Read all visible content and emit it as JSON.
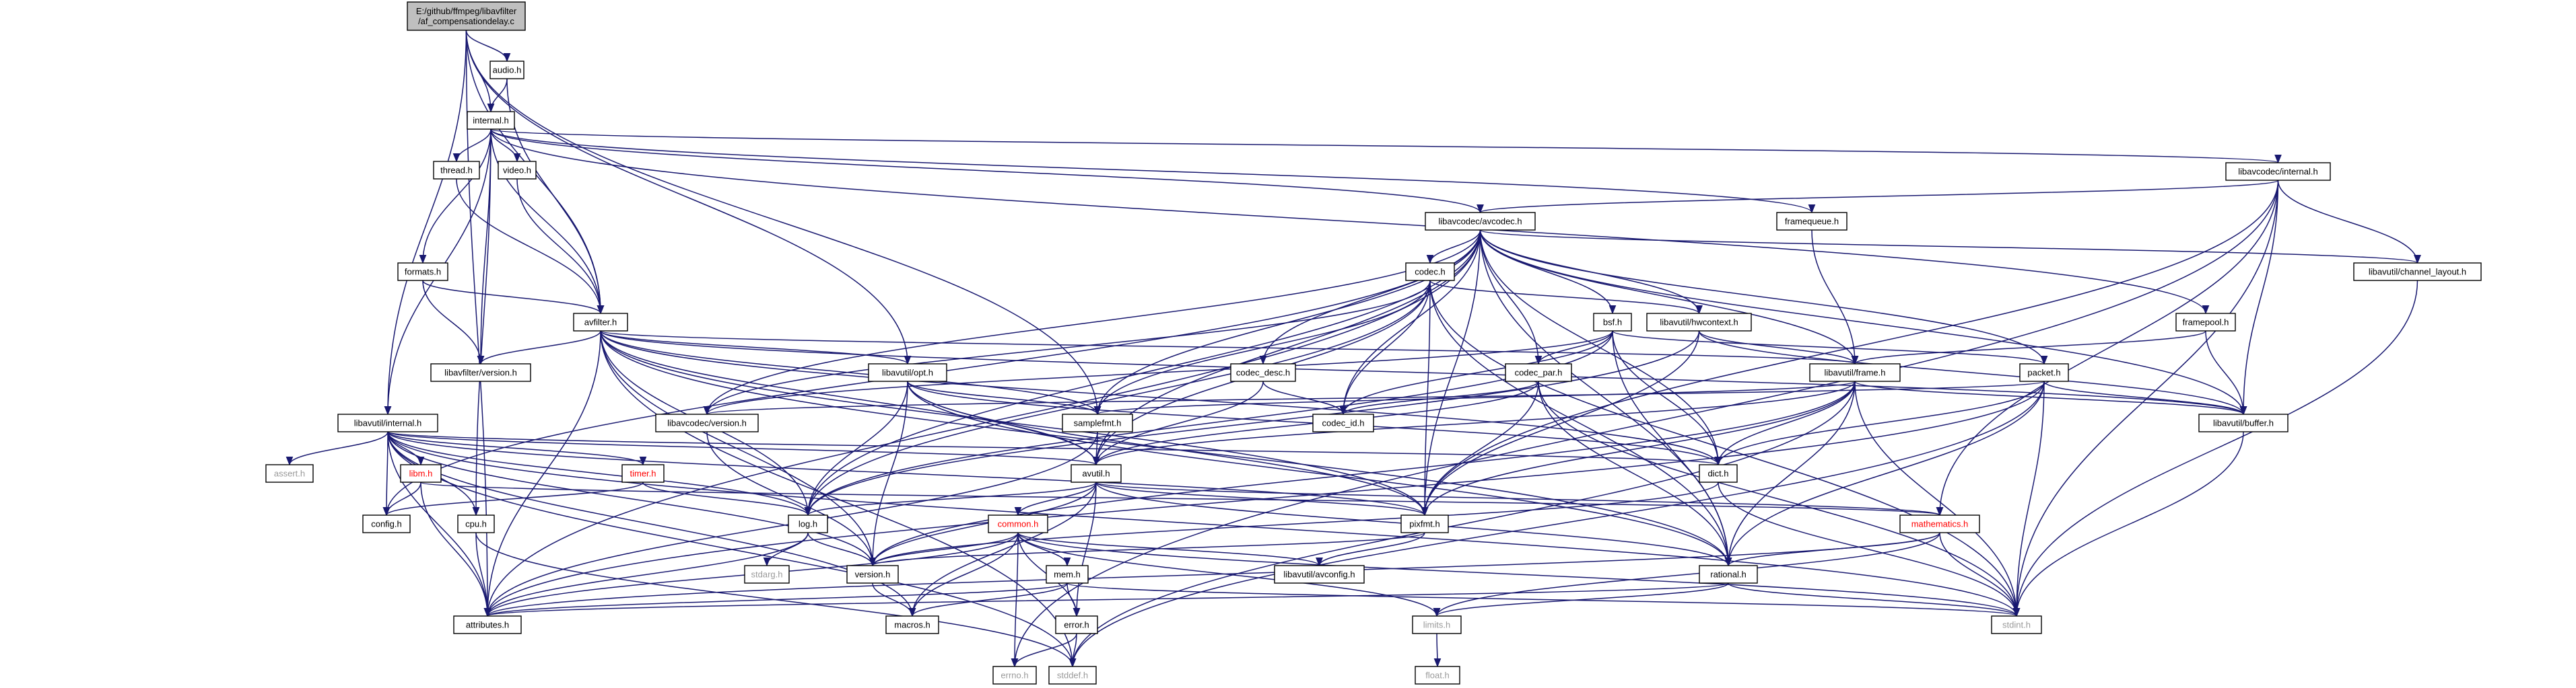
{
  "diagram": {
    "type": "include-dependency-graph",
    "colors": {
      "edge": "#191970",
      "root_fill": "#bfbfbf",
      "missing_text": "#9a9a9a",
      "undocumented_text": "#ff0000",
      "node_fill": "#ffffff"
    },
    "nodes": [
      {
        "id": "root",
        "lines": [
          "E:/github/ffmpeg/libavfilter",
          "/af_compensationdelay.c"
        ],
        "style": "root"
      },
      {
        "id": "audio_h",
        "lines": [
          "audio.h"
        ]
      },
      {
        "id": "internal_h",
        "lines": [
          "internal.h"
        ]
      },
      {
        "id": "thread_h",
        "lines": [
          "thread.h"
        ]
      },
      {
        "id": "video_h",
        "lines": [
          "video.h"
        ]
      },
      {
        "id": "formats_h",
        "lines": [
          "formats.h"
        ]
      },
      {
        "id": "avfilter_h",
        "lines": [
          "avfilter.h"
        ]
      },
      {
        "id": "avfilter_version_h",
        "lines": [
          "libavfilter/version.h"
        ]
      },
      {
        "id": "lavc_internal_h",
        "lines": [
          "libavcodec/internal.h"
        ]
      },
      {
        "id": "framequeue_h",
        "lines": [
          "framequeue.h"
        ]
      },
      {
        "id": "avcodec_h",
        "lines": [
          "libavcodec/avcodec.h"
        ]
      },
      {
        "id": "codec_h",
        "lines": [
          "codec.h"
        ]
      },
      {
        "id": "channel_layout_h",
        "lines": [
          "libavutil/channel_layout.h"
        ]
      },
      {
        "id": "bsf_h",
        "lines": [
          "bsf.h"
        ]
      },
      {
        "id": "hwcontext_h",
        "lines": [
          "libavutil/hwcontext.h"
        ]
      },
      {
        "id": "framepool_h",
        "lines": [
          "framepool.h"
        ]
      },
      {
        "id": "codec_desc_h",
        "lines": [
          "codec_desc.h"
        ]
      },
      {
        "id": "opt_h",
        "lines": [
          "libavutil/opt.h"
        ]
      },
      {
        "id": "codec_par_h",
        "lines": [
          "codec_par.h"
        ]
      },
      {
        "id": "frame_h",
        "lines": [
          "libavutil/frame.h"
        ]
      },
      {
        "id": "packet_h",
        "lines": [
          "packet.h"
        ]
      },
      {
        "id": "avutil_internal_h",
        "lines": [
          "libavutil/internal.h"
        ]
      },
      {
        "id": "avcodec_version_h",
        "lines": [
          "libavcodec/version.h"
        ]
      },
      {
        "id": "samplefmt_h",
        "lines": [
          "samplefmt.h"
        ]
      },
      {
        "id": "codec_id_h",
        "lines": [
          "codec_id.h"
        ]
      },
      {
        "id": "buffer_h",
        "lines": [
          "libavutil/buffer.h"
        ]
      },
      {
        "id": "assert_h",
        "lines": [
          "assert.h"
        ],
        "style": "gray"
      },
      {
        "id": "libm_h",
        "lines": [
          "libm.h"
        ],
        "style": "red"
      },
      {
        "id": "timer_h",
        "lines": [
          "timer.h"
        ],
        "style": "red"
      },
      {
        "id": "avutil_h",
        "lines": [
          "avutil.h"
        ]
      },
      {
        "id": "dict_h",
        "lines": [
          "dict.h"
        ]
      },
      {
        "id": "config_h",
        "lines": [
          "config.h"
        ]
      },
      {
        "id": "cpu_h",
        "lines": [
          "cpu.h"
        ]
      },
      {
        "id": "log_h",
        "lines": [
          "log.h"
        ]
      },
      {
        "id": "pixfmt_h",
        "lines": [
          "pixfmt.h"
        ]
      },
      {
        "id": "mathematics_h",
        "lines": [
          "mathematics.h"
        ],
        "style": "red"
      },
      {
        "id": "common_h",
        "lines": [
          "common.h"
        ],
        "style": "red"
      },
      {
        "id": "stdarg_h",
        "lines": [
          "stdarg.h"
        ],
        "style": "gray"
      },
      {
        "id": "version_h",
        "lines": [
          "version.h"
        ]
      },
      {
        "id": "avconfig_h",
        "lines": [
          "libavutil/avconfig.h"
        ]
      },
      {
        "id": "mem_h",
        "lines": [
          "mem.h"
        ]
      },
      {
        "id": "rational_h",
        "lines": [
          "rational.h"
        ]
      },
      {
        "id": "attributes_h",
        "lines": [
          "attributes.h"
        ]
      },
      {
        "id": "macros_h",
        "lines": [
          "macros.h"
        ]
      },
      {
        "id": "limits_h",
        "lines": [
          "limits.h"
        ],
        "style": "gray"
      },
      {
        "id": "stdint_h",
        "lines": [
          "stdint.h"
        ],
        "style": "gray"
      },
      {
        "id": "error_h",
        "lines": [
          "error.h"
        ]
      },
      {
        "id": "errno_h",
        "lines": [
          "errno.h"
        ],
        "style": "gray"
      },
      {
        "id": "stddef_h",
        "lines": [
          "stddef.h"
        ],
        "style": "gray"
      },
      {
        "id": "float_h",
        "lines": [
          "float.h"
        ],
        "style": "gray"
      }
    ],
    "edges": [
      [
        "root",
        "audio_h"
      ],
      [
        "root",
        "internal_h"
      ],
      [
        "root",
        "avfilter_h"
      ],
      [
        "root",
        "attributes_h"
      ],
      [
        "root",
        "avutil_internal_h"
      ],
      [
        "root",
        "opt_h"
      ],
      [
        "root",
        "samplefmt_h"
      ],
      [
        "audio_h",
        "internal_h"
      ],
      [
        "audio_h",
        "avfilter_h"
      ],
      [
        "internal_h",
        "thread_h"
      ],
      [
        "internal_h",
        "video_h"
      ],
      [
        "internal_h",
        "formats_h"
      ],
      [
        "internal_h",
        "avfilter_h"
      ],
      [
        "internal_h",
        "avfilter_version_h"
      ],
      [
        "internal_h",
        "lavc_internal_h"
      ],
      [
        "internal_h",
        "framequeue_h"
      ],
      [
        "internal_h",
        "avcodec_h"
      ],
      [
        "internal_h",
        "avutil_internal_h"
      ],
      [
        "internal_h",
        "framepool_h"
      ],
      [
        "internal_h",
        "cpu_h"
      ],
      [
        "thread_h",
        "avfilter_h"
      ],
      [
        "video_h",
        "avfilter_h"
      ],
      [
        "formats_h",
        "avfilter_h"
      ],
      [
        "formats_h",
        "avfilter_version_h"
      ],
      [
        "avfilter_h",
        "avfilter_version_h"
      ],
      [
        "avfilter_h",
        "attributes_h"
      ],
      [
        "avfilter_h",
        "avutil_h"
      ],
      [
        "avfilter_h",
        "buffer_h"
      ],
      [
        "avfilter_h",
        "dict_h"
      ],
      [
        "avfilter_h",
        "frame_h"
      ],
      [
        "avfilter_h",
        "log_h"
      ],
      [
        "avfilter_h",
        "samplefmt_h"
      ],
      [
        "avfilter_h",
        "pixfmt_h"
      ],
      [
        "avfilter_h",
        "rational_h"
      ],
      [
        "avfilter_h",
        "version_h"
      ],
      [
        "avfilter_h",
        "stddef_h"
      ],
      [
        "avfilter_h",
        "opt_h"
      ],
      [
        "lavc_internal_h",
        "avcodec_h"
      ],
      [
        "lavc_internal_h",
        "channel_layout_h"
      ],
      [
        "lavc_internal_h",
        "buffer_h"
      ],
      [
        "lavc_internal_h",
        "mathematics_h"
      ],
      [
        "lavc_internal_h",
        "pixfmt_h"
      ],
      [
        "lavc_internal_h",
        "stdint_h"
      ],
      [
        "lavc_internal_h",
        "errno_h"
      ],
      [
        "framequeue_h",
        "frame_h"
      ],
      [
        "avcodec_h",
        "codec_h"
      ],
      [
        "avcodec_h",
        "channel_layout_h"
      ],
      [
        "avcodec_h",
        "bsf_h"
      ],
      [
        "avcodec_h",
        "hwcontext_h"
      ],
      [
        "avcodec_h",
        "codec_desc_h"
      ],
      [
        "avcodec_h",
        "codec_par_h"
      ],
      [
        "avcodec_h",
        "frame_h"
      ],
      [
        "avcodec_h",
        "packet_h"
      ],
      [
        "avcodec_h",
        "avcodec_version_h"
      ],
      [
        "avcodec_h",
        "samplefmt_h"
      ],
      [
        "avcodec_h",
        "codec_id_h"
      ],
      [
        "avcodec_h",
        "buffer_h"
      ],
      [
        "avcodec_h",
        "avutil_h"
      ],
      [
        "avcodec_h",
        "dict_h"
      ],
      [
        "avcodec_h",
        "log_h"
      ],
      [
        "avcodec_h",
        "pixfmt_h"
      ],
      [
        "avcodec_h",
        "rational_h"
      ],
      [
        "avcodec_h",
        "attributes_h"
      ],
      [
        "avcodec_h",
        "config_h"
      ],
      [
        "codec_h",
        "hwcontext_h"
      ],
      [
        "codec_h",
        "codec_id_h"
      ],
      [
        "codec_h",
        "avutil_h"
      ],
      [
        "codec_h",
        "log_h"
      ],
      [
        "codec_h",
        "pixfmt_h"
      ],
      [
        "codec_h",
        "rational_h"
      ],
      [
        "codec_h",
        "samplefmt_h"
      ],
      [
        "codec_h",
        "avcodec_version_h"
      ],
      [
        "codec_h",
        "stdint_h"
      ],
      [
        "channel_layout_h",
        "stdint_h"
      ],
      [
        "bsf_h",
        "codec_id_h"
      ],
      [
        "bsf_h",
        "codec_par_h"
      ],
      [
        "bsf_h",
        "packet_h"
      ],
      [
        "bsf_h",
        "dict_h"
      ],
      [
        "bsf_h",
        "log_h"
      ],
      [
        "bsf_h",
        "rational_h"
      ],
      [
        "bsf_h",
        "avcodec_version_h"
      ],
      [
        "hwcontext_h",
        "buffer_h"
      ],
      [
        "hwcontext_h",
        "frame_h"
      ],
      [
        "hwcontext_h",
        "log_h"
      ],
      [
        "hwcontext_h",
        "pixfmt_h"
      ],
      [
        "framepool_h",
        "frame_h"
      ],
      [
        "framepool_h",
        "buffer_h"
      ],
      [
        "codec_desc_h",
        "avutil_h"
      ],
      [
        "codec_desc_h",
        "codec_id_h"
      ],
      [
        "opt_h",
        "rational_h"
      ],
      [
        "opt_h",
        "avutil_h"
      ],
      [
        "opt_h",
        "dict_h"
      ],
      [
        "opt_h",
        "log_h"
      ],
      [
        "opt_h",
        "pixfmt_h"
      ],
      [
        "opt_h",
        "samplefmt_h"
      ],
      [
        "opt_h",
        "version_h"
      ],
      [
        "codec_par_h",
        "avutil_h"
      ],
      [
        "codec_par_h",
        "rational_h"
      ],
      [
        "codec_par_h",
        "pixfmt_h"
      ],
      [
        "codec_par_h",
        "codec_id_h"
      ],
      [
        "codec_par_h",
        "stdint_h"
      ],
      [
        "frame_h",
        "avutil_h"
      ],
      [
        "frame_h",
        "buffer_h"
      ],
      [
        "frame_h",
        "dict_h"
      ],
      [
        "frame_h",
        "rational_h"
      ],
      [
        "frame_h",
        "samplefmt_h"
      ],
      [
        "frame_h",
        "pixfmt_h"
      ],
      [
        "frame_h",
        "version_h"
      ],
      [
        "frame_h",
        "stddef_h"
      ],
      [
        "frame_h",
        "stdint_h"
      ],
      [
        "packet_h",
        "attributes_h"
      ],
      [
        "packet_h",
        "buffer_h"
      ],
      [
        "packet_h",
        "dict_h"
      ],
      [
        "packet_h",
        "rational_h"
      ],
      [
        "packet_h",
        "avcodec_version_h"
      ],
      [
        "packet_h",
        "stddef_h"
      ],
      [
        "packet_h",
        "stdint_h"
      ],
      [
        "avutil_internal_h",
        "assert_h"
      ],
      [
        "avutil_internal_h",
        "libm_h"
      ],
      [
        "avutil_internal_h",
        "timer_h"
      ],
      [
        "avutil_internal_h",
        "config_h"
      ],
      [
        "avutil_internal_h",
        "cpu_h"
      ],
      [
        "avutil_internal_h",
        "attributes_h"
      ],
      [
        "avutil_internal_h",
        "avutil_h"
      ],
      [
        "avutil_internal_h",
        "dict_h"
      ],
      [
        "avutil_internal_h",
        "log_h"
      ],
      [
        "avutil_internal_h",
        "pixfmt_h"
      ],
      [
        "avutil_internal_h",
        "version_h"
      ],
      [
        "avutil_internal_h",
        "macros_h"
      ],
      [
        "avutil_internal_h",
        "stddef_h"
      ],
      [
        "avutil_internal_h",
        "stdint_h"
      ],
      [
        "avcodec_version_h",
        "version_h"
      ],
      [
        "samplefmt_h",
        "avutil_h"
      ],
      [
        "samplefmt_h",
        "attributes_h"
      ],
      [
        "buffer_h",
        "stdint_h"
      ],
      [
        "libm_h",
        "config_h"
      ],
      [
        "libm_h",
        "attributes_h"
      ],
      [
        "libm_h",
        "mathematics_h"
      ],
      [
        "timer_h",
        "config_h"
      ],
      [
        "timer_h",
        "log_h"
      ],
      [
        "avutil_h",
        "common_h"
      ],
      [
        "avutil_h",
        "error_h"
      ],
      [
        "avutil_h",
        "rational_h"
      ],
      [
        "avutil_h",
        "version_h"
      ],
      [
        "avutil_h",
        "macros_h"
      ],
      [
        "avutil_h",
        "mathematics_h"
      ],
      [
        "avutil_h",
        "log_h"
      ],
      [
        "avutil_h",
        "pixfmt_h"
      ],
      [
        "dict_h",
        "stdint_h"
      ],
      [
        "dict_h",
        "version_h"
      ],
      [
        "cpu_h",
        "attributes_h"
      ],
      [
        "cpu_h",
        "stddef_h"
      ],
      [
        "log_h",
        "stdarg_h"
      ],
      [
        "log_h",
        "attributes_h"
      ],
      [
        "log_h",
        "version_h"
      ],
      [
        "pixfmt_h",
        "avconfig_h"
      ],
      [
        "pixfmt_h",
        "version_h"
      ],
      [
        "mathematics_h",
        "stdint_h"
      ],
      [
        "mathematics_h",
        "rational_h"
      ],
      [
        "mathematics_h",
        "attributes_h"
      ],
      [
        "mathematics_h",
        "limits_h"
      ],
      [
        "common_h",
        "errno_h"
      ],
      [
        "common_h",
        "limits_h"
      ],
      [
        "common_h",
        "stdint_h"
      ],
      [
        "common_h",
        "attributes_h"
      ],
      [
        "common_h",
        "macros_h"
      ],
      [
        "common_h",
        "version_h"
      ],
      [
        "common_h",
        "avconfig_h"
      ],
      [
        "common_h",
        "mem_h"
      ],
      [
        "common_h",
        "error_h"
      ],
      [
        "mem_h",
        "attributes_h"
      ],
      [
        "mem_h",
        "error_h"
      ],
      [
        "mem_h",
        "macros_h"
      ],
      [
        "mem_h",
        "stdint_h"
      ],
      [
        "rational_h",
        "attributes_h"
      ],
      [
        "rational_h",
        "limits_h"
      ],
      [
        "rational_h",
        "stdint_h"
      ],
      [
        "version_h",
        "macros_h"
      ],
      [
        "error_h",
        "errno_h"
      ],
      [
        "error_h",
        "stddef_h"
      ],
      [
        "limits_h",
        "float_h"
      ]
    ]
  }
}
